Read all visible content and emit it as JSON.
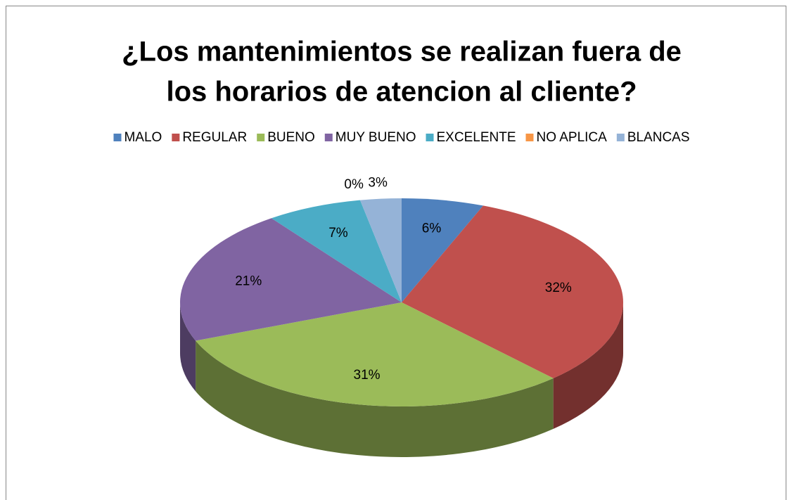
{
  "chart_data": {
    "type": "pie3d",
    "title": [
      "¿Los mantenimientos se realizan fuera de",
      "los horarios de atencion al cliente?"
    ],
    "categories": [
      "MALO",
      "REGULAR",
      "BUENO",
      "MUY BUENO",
      "EXCELENTE",
      "NO APLICA",
      "BLANCAS"
    ],
    "values": [
      6,
      32,
      31,
      21,
      7,
      0,
      3
    ],
    "value_labels": [
      "6%",
      "32%",
      "31%",
      "21%",
      "7%",
      "0%",
      "3%"
    ],
    "colors": [
      "#4f81bd",
      "#c0504d",
      "#9bbb59",
      "#8064a2",
      "#4bacc6",
      "#f79646",
      "#95b3d7"
    ],
    "legend": "top"
  }
}
